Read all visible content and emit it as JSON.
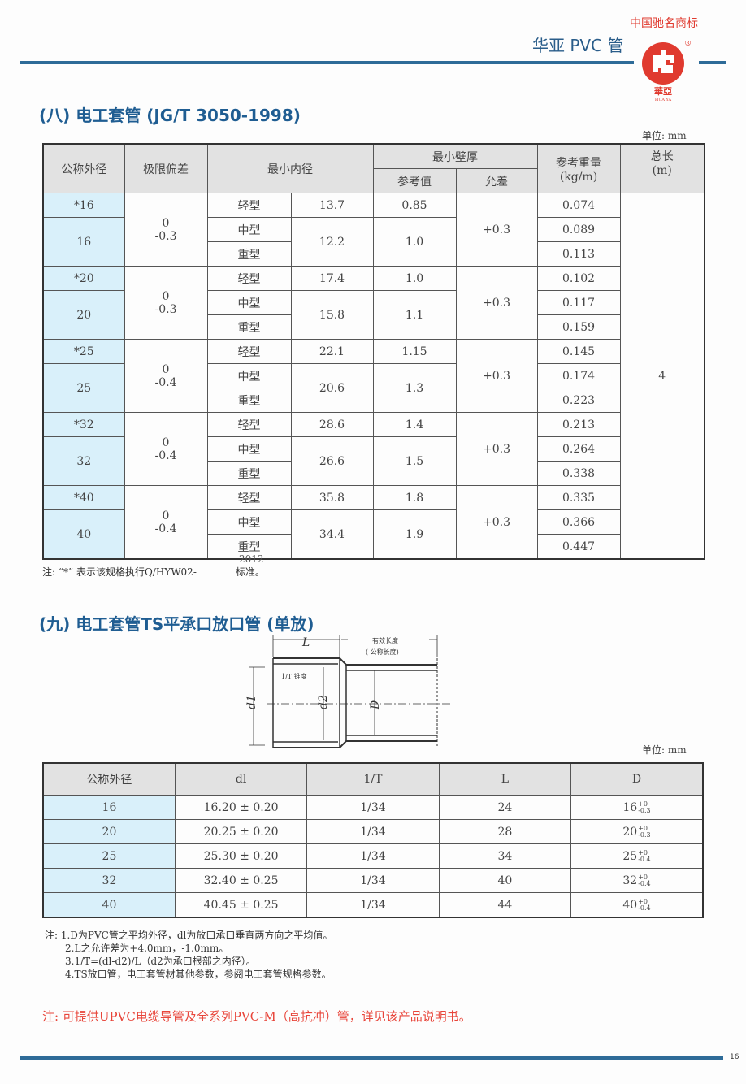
{
  "header": {
    "brand": "华亚 PVC 管",
    "trademark": "中国驰名商标",
    "logo_text": "華亞",
    "logo_sub": "HUA YA",
    "registered": "®"
  },
  "section8": {
    "title": "(八) 电工套管 (JG/T 3050-1998)",
    "unit": "单位: mm",
    "headers": {
      "od": "公称外径",
      "dev": "极限偏差",
      "id": "最小内径",
      "wall": "最小壁厚",
      "wall_ref": "参考值",
      "wall_tol": "允差",
      "weight": "参考重量",
      "weight_unit": "(kg/m)",
      "length": "总长",
      "length_unit": "(m)"
    },
    "length_value": "4",
    "groups": [
      {
        "od_star": "*16",
        "od": "16",
        "dev": [
          "0",
          "-0.3"
        ],
        "light_id": "13.7",
        "mid_id": "12.2",
        "light_wall": "0.85",
        "mid_wall": "1.0",
        "tol": "+0.3",
        "weights": [
          "0.074",
          "0.089",
          "0.113"
        ]
      },
      {
        "od_star": "*20",
        "od": "20",
        "dev": [
          "0",
          "-0.3"
        ],
        "light_id": "17.4",
        "mid_id": "15.8",
        "light_wall": "1.0",
        "mid_wall": "1.1",
        "tol": "+0.3",
        "weights": [
          "0.102",
          "0.117",
          "0.159"
        ]
      },
      {
        "od_star": "*25",
        "od": "25",
        "dev": [
          "0",
          "-0.4"
        ],
        "light_id": "22.1",
        "mid_id": "20.6",
        "light_wall": "1.15",
        "mid_wall": "1.3",
        "tol": "+0.3",
        "weights": [
          "0.145",
          "0.174",
          "0.223"
        ]
      },
      {
        "od_star": "*32",
        "od": "32",
        "dev": [
          "0",
          "-0.4"
        ],
        "light_id": "28.6",
        "mid_id": "26.6",
        "light_wall": "1.4",
        "mid_wall": "1.5",
        "tol": "+0.3",
        "weights": [
          "0.213",
          "0.264",
          "0.338"
        ]
      },
      {
        "od_star": "*40",
        "od": "40",
        "dev": [
          "0",
          "-0.4"
        ],
        "light_id": "35.8",
        "mid_id": "34.4",
        "light_wall": "1.8",
        "mid_wall": "1.9",
        "tol": "+0.3",
        "weights": [
          "0.335",
          "0.366",
          "0.447"
        ]
      }
    ],
    "types": [
      "轻型",
      "中型",
      "重型"
    ],
    "note": "注: “*” 表示该规格执行Q/HYW02-",
    "note_year": "2012",
    "note_end": "标准。"
  },
  "section9": {
    "title": "(九) 电工套管TS平承口放口管 (单放)",
    "diagram": {
      "L": "L",
      "eff": "有效长度",
      "nominal": "( 公称长度)",
      "taper": "1/T 锥度",
      "d1": "d1",
      "d2": "d2",
      "D": "D"
    },
    "unit": "单位: mm",
    "headers": [
      "公称外径",
      "dl",
      "1/T",
      "L",
      "D"
    ],
    "rows": [
      {
        "od": "16",
        "dl": "16.20 ± 0.20",
        "t": "1/34",
        "L": "24",
        "D": "16",
        "up": "+0",
        "lo": "-0.3"
      },
      {
        "od": "20",
        "dl": "20.25 ± 0.20",
        "t": "1/34",
        "L": "28",
        "D": "20",
        "up": "+0",
        "lo": "-0.3"
      },
      {
        "od": "25",
        "dl": "25.30 ± 0.20",
        "t": "1/34",
        "L": "34",
        "D": "25",
        "up": "+0",
        "lo": "-0.4"
      },
      {
        "od": "32",
        "dl": "32.40 ± 0.25",
        "t": "1/34",
        "L": "40",
        "D": "32",
        "up": "+0",
        "lo": "-0.4"
      },
      {
        "od": "40",
        "dl": "40.45 ± 0.25",
        "t": "1/34",
        "L": "44",
        "D": "40",
        "up": "+0",
        "lo": "-0.4"
      }
    ],
    "notes": [
      "注: 1.D为PVC管之平均外径，dl为放口承口垂直两方向之平均值。",
      "2.L之允许差为+4.0mm，-1.0mm。",
      "3.1/T=(dl-d2)/L（d2为承口根部之内径）。",
      "4.TS放口管，电工套管材其他参数，参阅电工套管规格参数。"
    ],
    "red_note": "注: 可提供UPVC电缆导管及全系列PVC-M（高抗冲）管，详见该产品说明书。"
  },
  "page_number": "16",
  "colors": {
    "brand_blue": "#2e6b98",
    "red": "#e8453a",
    "cell_blue": "#d9f0fa"
  }
}
